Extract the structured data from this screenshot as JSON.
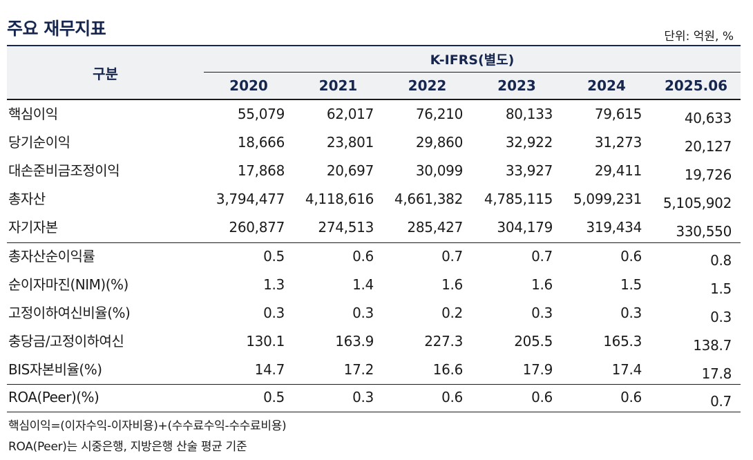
{
  "header": {
    "title": "주요 재무지표",
    "unit": "단위: 억원, %"
  },
  "table": {
    "label_header": "구분",
    "group_header": "K-IFRS(별도)",
    "years": [
      "2020",
      "2021",
      "2022",
      "2023",
      "2024",
      "2025.06"
    ],
    "rows": [
      {
        "label": "핵심이익",
        "values": [
          "55,079",
          "62,017",
          "76,210",
          "80,133",
          "79,615",
          "40,633"
        ]
      },
      {
        "label": "당기순이익",
        "values": [
          "18,666",
          "23,801",
          "29,860",
          "32,922",
          "31,273",
          "20,127"
        ]
      },
      {
        "label": "대손준비금조정이익",
        "values": [
          "17,868",
          "20,697",
          "30,099",
          "33,927",
          "29,411",
          "19,726"
        ]
      },
      {
        "label": "총자산",
        "values": [
          "3,794,477",
          "4,118,616",
          "4,661,382",
          "4,785,115",
          "5,099,231",
          "5,105,902"
        ]
      },
      {
        "label": "자기자본",
        "values": [
          "260,877",
          "274,513",
          "285,427",
          "304,179",
          "319,434",
          "330,550"
        ]
      },
      {
        "label": "총자산순이익률",
        "values": [
          "0.5",
          "0.6",
          "0.7",
          "0.7",
          "0.6",
          "0.8"
        ]
      },
      {
        "label": "순이자마진(NIM)(%)",
        "values": [
          "1.3",
          "1.4",
          "1.6",
          "1.6",
          "1.5",
          "1.5"
        ]
      },
      {
        "label": "고정이하여신비율(%)",
        "values": [
          "0.3",
          "0.3",
          "0.2",
          "0.3",
          "0.3",
          "0.3"
        ]
      },
      {
        "label": "충당금/고정이하여신",
        "values": [
          "130.1",
          "163.9",
          "227.3",
          "205.5",
          "165.3",
          "138.7"
        ]
      },
      {
        "label": "BIS자본비율(%)",
        "values": [
          "14.7",
          "17.2",
          "16.6",
          "17.9",
          "17.4",
          "17.8"
        ]
      },
      {
        "label": "ROA(Peer)(%)",
        "values": [
          "0.5",
          "0.3",
          "0.6",
          "0.6",
          "0.6",
          "0.7"
        ]
      }
    ]
  },
  "footnotes": [
    "핵심이익=(이자수익-이자비용)+(수수료수익-수수료비용)",
    "ROA(Peer)는 시중은행, 지방은행 산술 평균 기준"
  ],
  "colors": {
    "title": "#16264e",
    "header_bg": "#f0f1f2",
    "text": "#1a1a1a"
  }
}
